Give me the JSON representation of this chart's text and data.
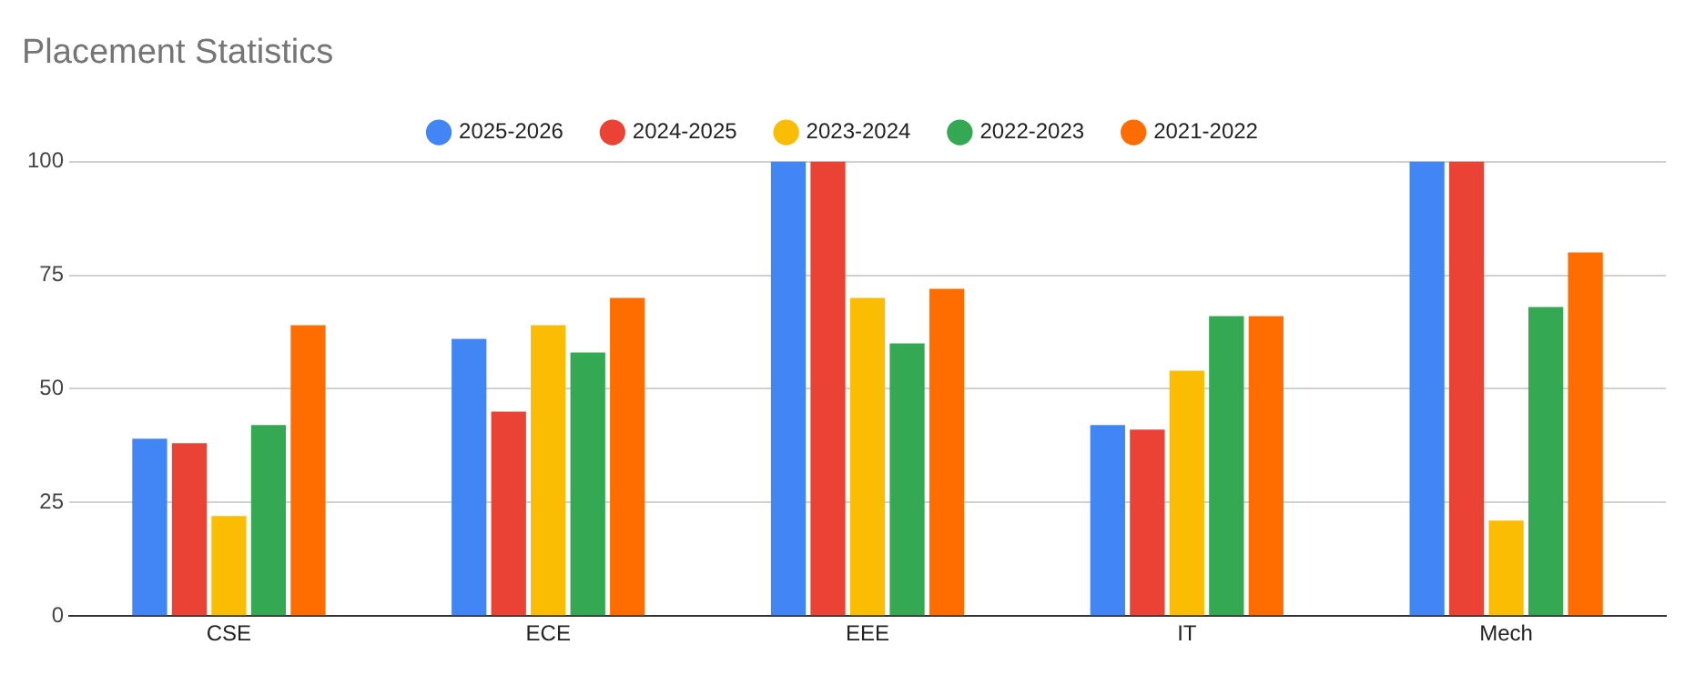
{
  "chart_data": {
    "type": "bar",
    "title": "Placement Statistics",
    "categories": [
      "CSE",
      "ECE",
      "EEE",
      "IT",
      "Mech"
    ],
    "series": [
      {
        "name": "2025-2026",
        "color": "#4285f4",
        "values": [
          39,
          61,
          100,
          42,
          100
        ]
      },
      {
        "name": "2024-2025",
        "color": "#ea4335",
        "values": [
          38,
          45,
          100,
          41,
          100
        ]
      },
      {
        "name": "2023-2024",
        "color": "#fbbc04",
        "values": [
          22,
          64,
          70,
          54,
          21
        ]
      },
      {
        "name": "2022-2023",
        "color": "#34a853",
        "values": [
          42,
          58,
          60,
          66,
          68
        ]
      },
      {
        "name": "2021-2022",
        "color": "#ff6d01",
        "values": [
          64,
          70,
          72,
          66,
          80
        ]
      }
    ],
    "ylim": [
      0,
      100
    ],
    "yticks": [
      0,
      25,
      50,
      75,
      100
    ],
    "grid": "y",
    "legend": "top"
  }
}
